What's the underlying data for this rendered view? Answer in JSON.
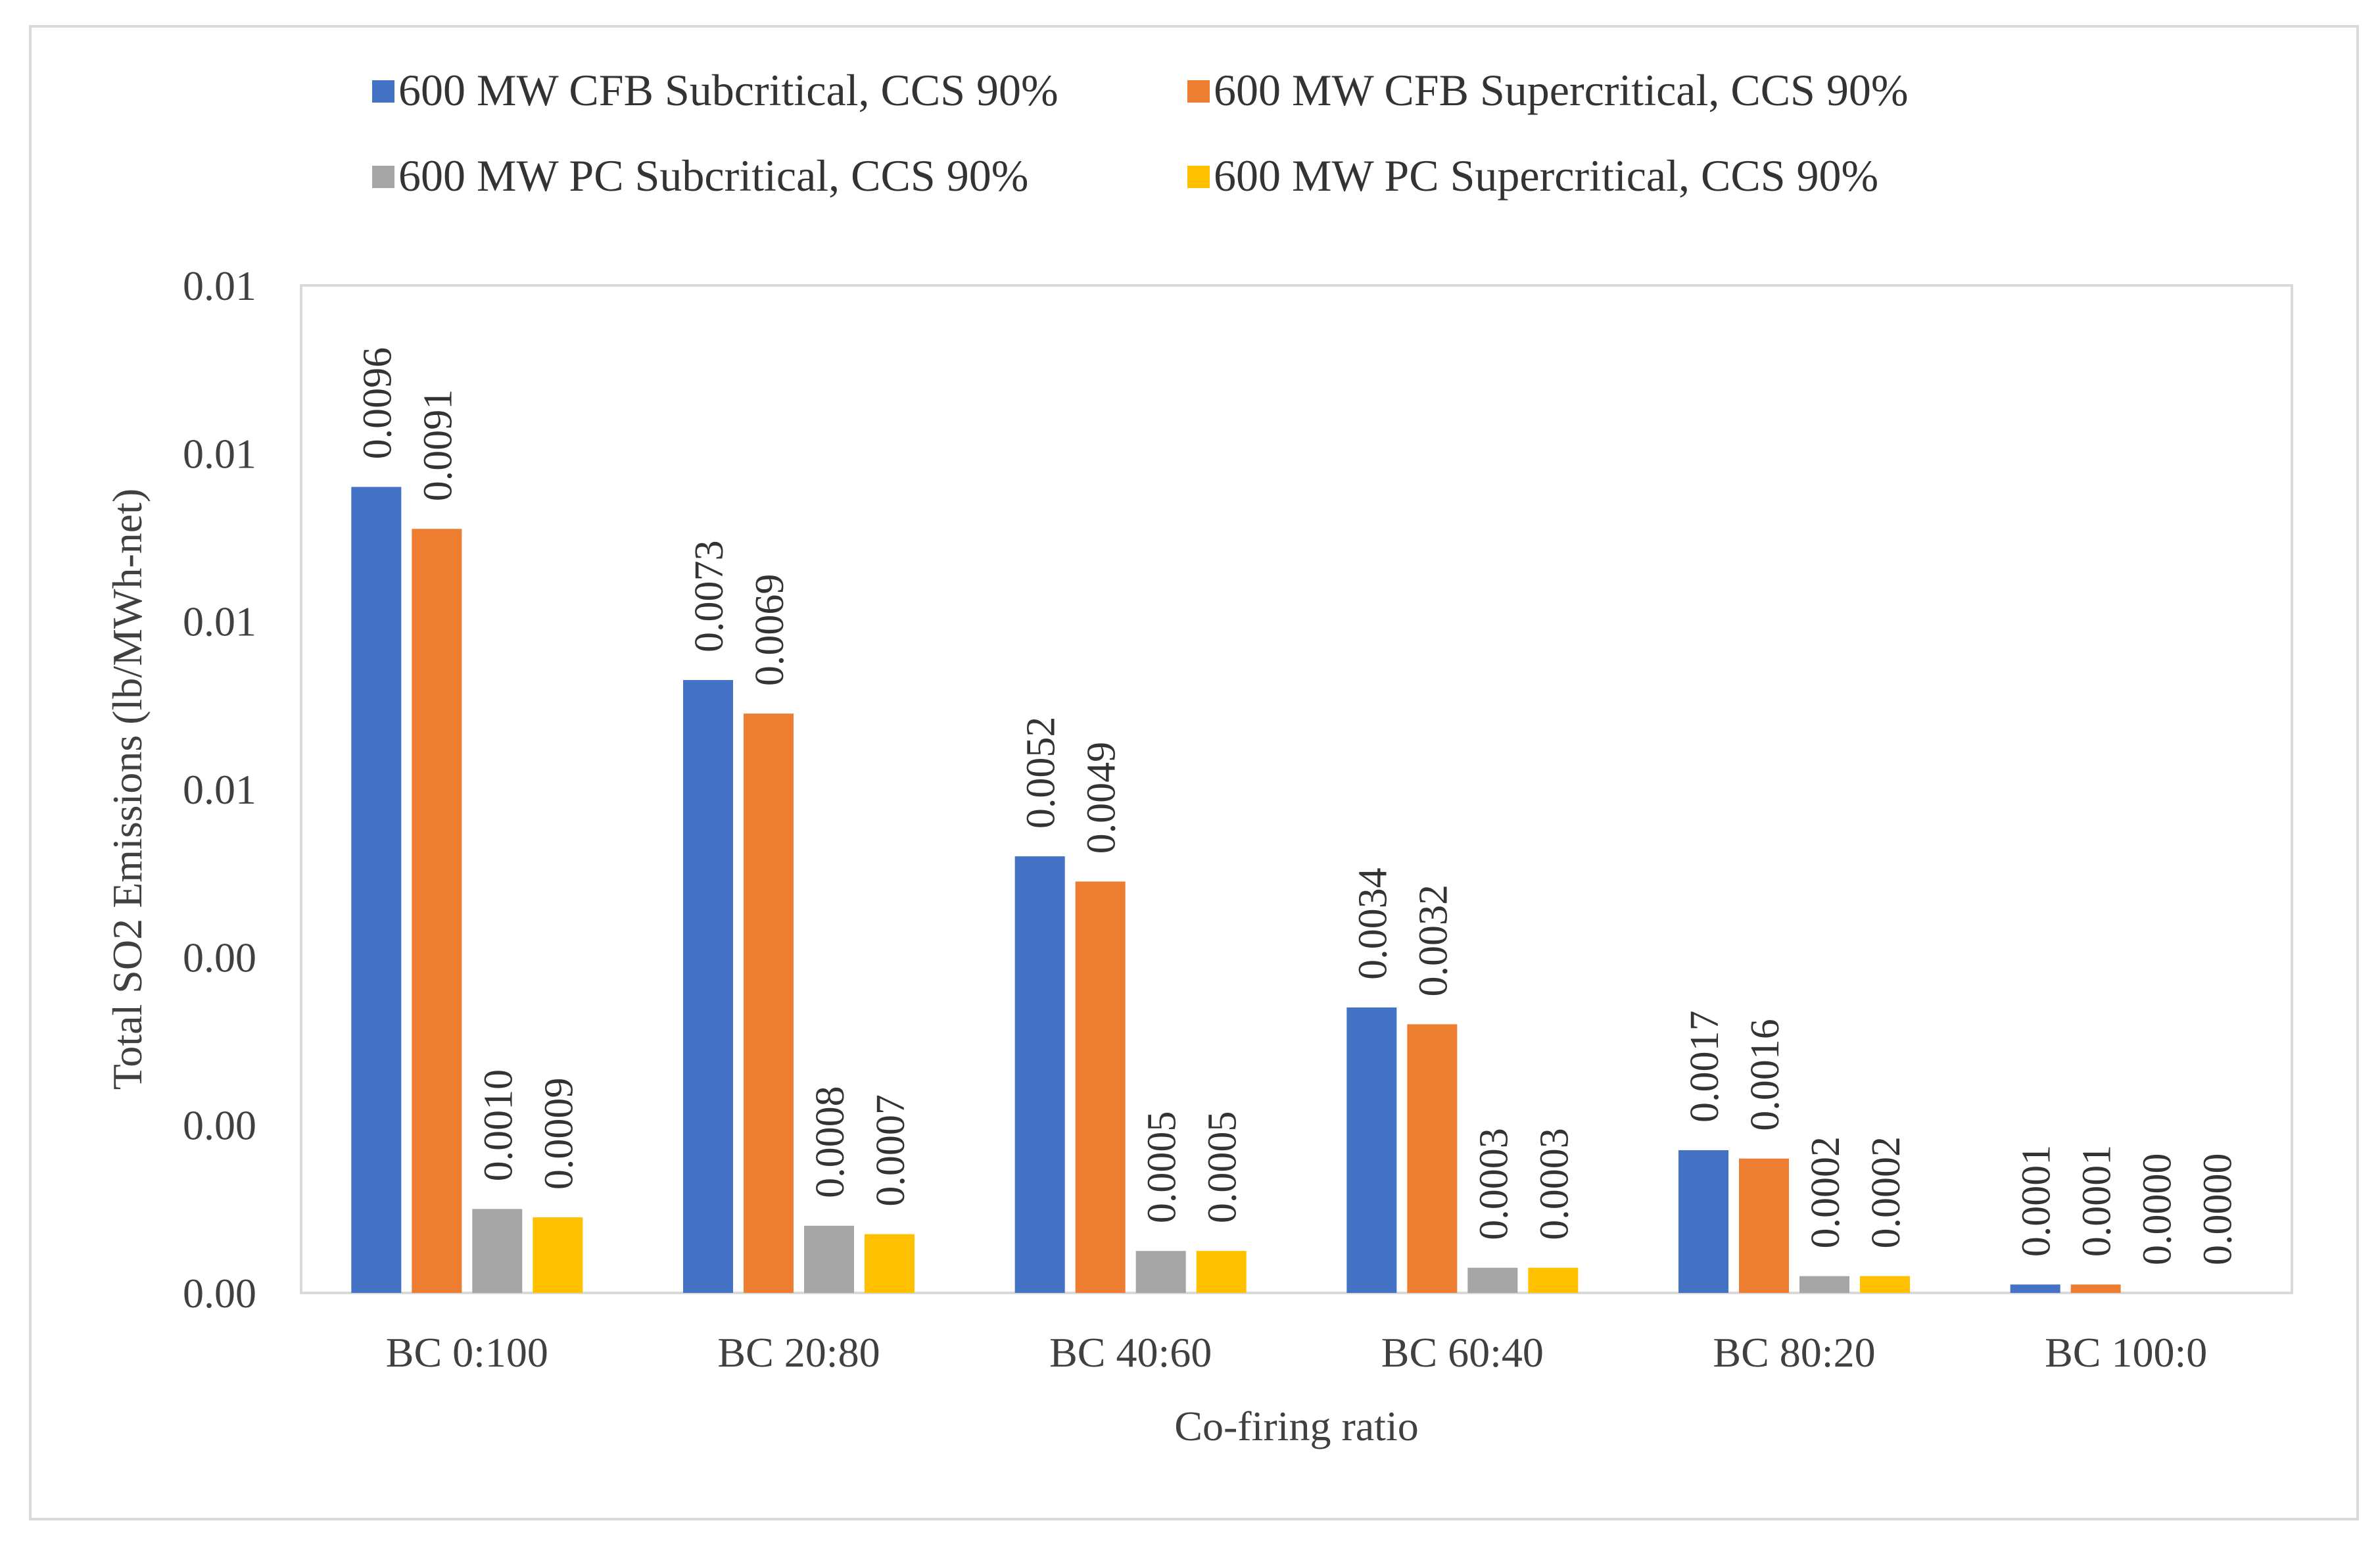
{
  "chart_data": {
    "type": "bar",
    "title": "",
    "xlabel": "Co-firing ratio",
    "ylabel": "Total SO2 Emissions (lb/MWh-net)",
    "ylim": [
      0,
      0.012
    ],
    "y_tick_labels": [
      "0.00",
      "0.00",
      "0.00",
      "0.01",
      "0.01",
      "0.01",
      "0.01"
    ],
    "grid": false,
    "legend_position": "top",
    "categories": [
      "BC 0:100",
      "BC 20:80",
      "BC 40:60",
      "BC 60:40",
      "BC 80:20",
      "BC 100:0"
    ],
    "series": [
      {
        "name": "600 MW CFB Subcritical, CCS 90%",
        "color": "#4472C4",
        "values": [
          0.0096,
          0.0073,
          0.0052,
          0.0034,
          0.0017,
          0.0001
        ],
        "labels": [
          "0.0096",
          "0.0073",
          "0.0052",
          "0.0034",
          "0.0017",
          "0.0001"
        ]
      },
      {
        "name": "600 MW CFB Supercritical, CCS 90%",
        "color": "#ED7D31",
        "values": [
          0.0091,
          0.0069,
          0.0049,
          0.0032,
          0.0016,
          0.0001
        ],
        "labels": [
          "0.0091",
          "0.0069",
          "0.0049",
          "0.0032",
          "0.0016",
          "0.0001"
        ]
      },
      {
        "name": "600 MW PC Subcritical, CCS 90%",
        "color": "#A5A5A5",
        "values": [
          0.001,
          0.0008,
          0.0005,
          0.0003,
          0.0002,
          0.0
        ],
        "labels": [
          "0.0010",
          "0.0008",
          "0.0005",
          "0.0003",
          "0.0002",
          "0.0000"
        ]
      },
      {
        "name": "600 MW PC Supercritical, CCS 90%",
        "color": "#FFC000",
        "values": [
          0.0009,
          0.0007,
          0.0005,
          0.0003,
          0.0002,
          0.0
        ],
        "labels": [
          "0.0009",
          "0.0007",
          "0.0005",
          "0.0003",
          "0.0002",
          "0.0000"
        ]
      }
    ]
  }
}
